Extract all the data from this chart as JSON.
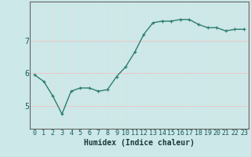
{
  "x": [
    0,
    1,
    2,
    3,
    4,
    5,
    6,
    7,
    8,
    9,
    10,
    11,
    12,
    13,
    14,
    15,
    16,
    17,
    18,
    19,
    20,
    21,
    22,
    23
  ],
  "y": [
    5.95,
    5.75,
    5.3,
    4.75,
    5.45,
    5.55,
    5.55,
    5.45,
    5.5,
    5.9,
    6.2,
    6.65,
    7.2,
    7.55,
    7.6,
    7.6,
    7.65,
    7.65,
    7.5,
    7.4,
    7.4,
    7.3,
    7.35,
    7.35
  ],
  "line_color": "#2e7d6e",
  "marker": "+",
  "marker_size": 3,
  "line_width": 1.0,
  "bg_color": "#cce8e8",
  "grid_v_color": "#e0e0e0",
  "grid_h_color": "#e8c8c8",
  "xlabel": "Humidex (Indice chaleur)",
  "xlabel_fontsize": 7,
  "xlabel_weight": "bold",
  "yticks": [
    5,
    6,
    7
  ],
  "ylim": [
    4.3,
    8.2
  ],
  "xlim": [
    -0.5,
    23.5
  ],
  "xtick_labels": [
    "0",
    "1",
    "2",
    "3",
    "4",
    "5",
    "6",
    "7",
    "8",
    "9",
    "10",
    "11",
    "12",
    "13",
    "14",
    "15",
    "16",
    "17",
    "18",
    "19",
    "20",
    "21",
    "22",
    "23"
  ],
  "tick_fontsize": 6,
  "spine_color": "#666666"
}
